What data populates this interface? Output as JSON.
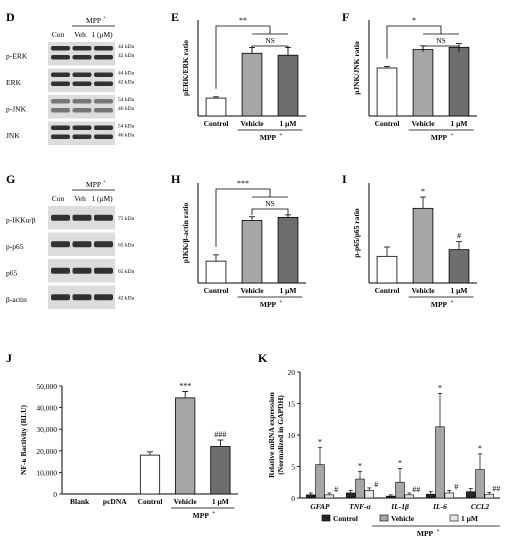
{
  "panel_letters": {
    "D": "D",
    "E": "E",
    "F": "F",
    "G": "G",
    "H": "H",
    "I": "I",
    "J": "J",
    "K": "K"
  },
  "blots": {
    "D": {
      "header_line": "MPP",
      "header_sup": "+",
      "lanes": [
        "Con",
        "Veh",
        "1  (μM)"
      ],
      "rows": [
        {
          "label": "p-ERK",
          "kda": [
            "44 kDa",
            "42 kDa"
          ]
        },
        {
          "label": "ERK",
          "kda": [
            "44 kDa",
            "42 kDa"
          ]
        },
        {
          "label": "p-JNK",
          "kda": [
            "54 kDa",
            "46 kDa"
          ]
        },
        {
          "label": "JNK",
          "kda": [
            "54 kDa",
            "46 kDa"
          ]
        }
      ]
    },
    "G": {
      "header_line": "MPP",
      "header_sup": "+",
      "lanes": [
        "Con",
        "Veh",
        "1  (μM)"
      ],
      "rows": [
        {
          "label": "p-IKKα/β",
          "kda": [
            "75 kDa"
          ]
        },
        {
          "label": "p-p65",
          "kda": [
            "65 kDa"
          ]
        },
        {
          "label": "p65",
          "kda": [
            "65 kDa"
          ]
        },
        {
          "label": "β-actin",
          "kda": [
            "42 kDa"
          ]
        }
      ]
    }
  },
  "chart_data": [
    {
      "panel": "E",
      "type": "bar",
      "ylabel": "pERK/ERK ratio",
      "categories": [
        "Control",
        "Vehicle",
        "1 μM"
      ],
      "values": [
        0.28,
        0.98,
        0.95
      ],
      "errors": [
        0.02,
        0.09,
        0.12
      ],
      "ylim": [
        0,
        1.5
      ],
      "colors": [
        "#ffffff",
        "#a6a6a6",
        "#6e6e6e"
      ],
      "group_label": "MPP",
      "group_sup": "+",
      "sig": [
        {
          "pair": [
            0,
            1.5
          ],
          "text": "**"
        },
        {
          "pair": [
            1,
            2
          ],
          "text": "NS"
        }
      ]
    },
    {
      "panel": "F",
      "type": "bar",
      "ylabel": "pJNK/JNK ratio",
      "categories": [
        "Control",
        "Vehicle",
        "1 μM"
      ],
      "values": [
        0.65,
        0.9,
        0.93
      ],
      "errors": [
        0.02,
        0.05,
        0.05
      ],
      "ylim": [
        0,
        1.3
      ],
      "colors": [
        "#ffffff",
        "#a6a6a6",
        "#6e6e6e"
      ],
      "group_label": "MPP",
      "group_sup": "+",
      "sig": [
        {
          "pair": [
            0,
            1.5
          ],
          "text": "*"
        },
        {
          "pair": [
            1,
            2
          ],
          "text": "NS"
        }
      ]
    },
    {
      "panel": "H",
      "type": "bar",
      "ylabel": "pIKK/β-actin ratio",
      "categories": [
        "Control",
        "Vehicle",
        "1 μM"
      ],
      "values": [
        0.35,
        1.0,
        1.05
      ],
      "errors": [
        0.1,
        0.06,
        0.04
      ],
      "ylim": [
        0,
        1.6
      ],
      "colors": [
        "#ffffff",
        "#a6a6a6",
        "#6e6e6e"
      ],
      "group_label": "MPP",
      "group_sup": "+",
      "sig": [
        {
          "pair": [
            0,
            1.5
          ],
          "text": "***"
        },
        {
          "pair": [
            1,
            2
          ],
          "text": "NS"
        }
      ]
    },
    {
      "panel": "I",
      "type": "bar",
      "ylabel": "p-p65/p65 ratio",
      "categories": [
        "Control",
        "Vehicle",
        "1 μM"
      ],
      "values": [
        0.4,
        1.12,
        0.5
      ],
      "errors": [
        0.14,
        0.17,
        0.12
      ],
      "ylim": [
        0,
        1.5
      ],
      "colors": [
        "#ffffff",
        "#a6a6a6",
        "#6e6e6e"
      ],
      "group_label": "MPP",
      "group_sup": "+",
      "marks": [
        "",
        "*",
        "#"
      ]
    },
    {
      "panel": "J",
      "type": "bar",
      "ylabel": "NF-κ Bactivity (RLU)",
      "categories": [
        "Blank",
        "pcDNA",
        "Control",
        "Vehicle",
        "1 μM"
      ],
      "values": [
        0,
        0,
        18000,
        44500,
        22000
      ],
      "errors": [
        0,
        0,
        1500,
        3000,
        3000
      ],
      "ylim": [
        0,
        50000
      ],
      "yticks": [
        "0",
        "10,000",
        "20,000",
        "30,000",
        "40,000",
        "50,000"
      ],
      "colors": [
        "#ffffff",
        "#ffffff",
        "#ffffff",
        "#a6a6a6",
        "#6e6e6e"
      ],
      "group_label": "MPP",
      "group_sup": "+",
      "marks": [
        "",
        "",
        "",
        "***",
        "###"
      ]
    },
    {
      "panel": "K",
      "type": "bar",
      "ylabel": "Relative mRNA expression",
      "ylabel2": "(Normalized in GAPDH)",
      "categories": [
        "GFAP",
        "TNF-α",
        "IL-1β",
        "IL-6",
        "CCL2"
      ],
      "series": [
        {
          "name": "Control",
          "values": [
            0.5,
            0.8,
            0.3,
            0.6,
            1.0
          ],
          "errors": [
            0.3,
            0.4,
            0.2,
            0.4,
            0.5
          ]
        },
        {
          "name": "Vehicle",
          "values": [
            5.3,
            3.0,
            2.5,
            11.3,
            4.5
          ],
          "errors": [
            2.7,
            1.2,
            2.2,
            5.3,
            2.5
          ]
        },
        {
          "name": "1 μM",
          "values": [
            0.5,
            1.2,
            0.5,
            0.8,
            0.6
          ],
          "errors": [
            0.3,
            0.4,
            0.3,
            0.4,
            0.3
          ]
        }
      ],
      "ylim": [
        0,
        20
      ],
      "yticks": [
        "0",
        "5",
        "10",
        "15",
        "20"
      ],
      "colors": [
        "#262626",
        "#a6a6a6",
        "#e6e6e6"
      ],
      "marks": [
        [
          "",
          "*",
          "#"
        ],
        [
          "",
          "*",
          "#"
        ],
        [
          "",
          "*",
          "##"
        ],
        [
          "",
          "*",
          "#"
        ],
        [
          "",
          "*",
          "##"
        ]
      ],
      "group_label": "MPP",
      "group_sup": "+"
    }
  ]
}
